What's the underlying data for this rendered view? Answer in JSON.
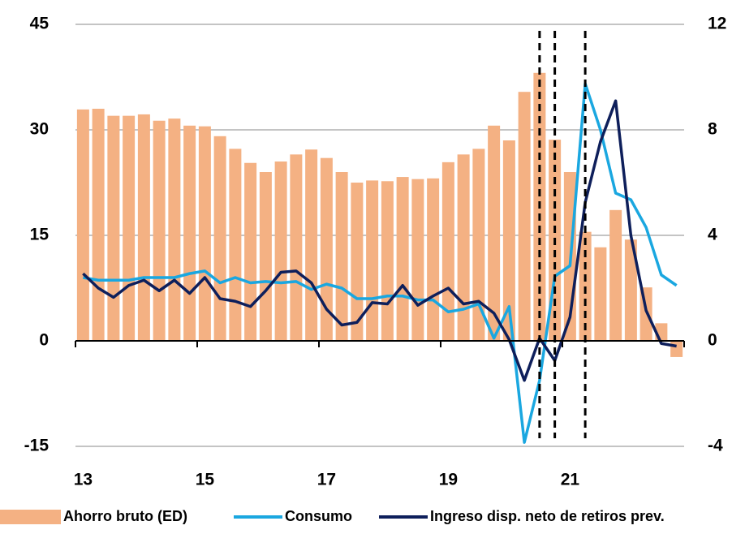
{
  "chart_data": {
    "type": "bar",
    "categories": [
      "13",
      null,
      null,
      null,
      null,
      null,
      null,
      null,
      "15",
      null,
      null,
      null,
      null,
      null,
      null,
      null,
      "17",
      null,
      null,
      null,
      null,
      null,
      null,
      null,
      "19",
      null,
      null,
      null,
      null,
      null,
      null,
      null,
      "21",
      null,
      null,
      null,
      null,
      null,
      null,
      null
    ],
    "series": [
      {
        "name": "Ahorro bruto (ED)",
        "type": "bar",
        "axis": "y",
        "color": "#f4b183",
        "values": [
          32.9,
          33.0,
          32.0,
          32.0,
          32.2,
          31.3,
          31.6,
          30.6,
          30.5,
          29.1,
          27.3,
          25.3,
          24.0,
          25.5,
          26.5,
          27.2,
          26.0,
          24.0,
          22.5,
          22.8,
          22.7,
          23.3,
          23.0,
          23.1,
          25.4,
          26.5,
          27.3,
          30.6,
          28.5,
          35.4,
          38.1,
          28.6,
          24.0,
          15.5,
          13.3,
          18.6,
          14.4,
          7.6,
          2.5,
          -2.3
        ]
      },
      {
        "name": "Consumo",
        "type": "line",
        "axis": "y2",
        "color": "#1aa7e0",
        "values": [
          2.4,
          2.3,
          2.3,
          2.3,
          2.4,
          2.4,
          2.4,
          2.55,
          2.65,
          2.2,
          2.4,
          2.2,
          2.25,
          2.2,
          2.25,
          1.95,
          2.15,
          2.0,
          1.6,
          1.6,
          1.7,
          1.7,
          1.55,
          1.55,
          1.1,
          1.2,
          1.4,
          0.1,
          1.3,
          -3.85,
          -1.5,
          2.45,
          2.85,
          9.75,
          8.0,
          5.6,
          5.35,
          4.3,
          2.5,
          2.1
        ]
      },
      {
        "name": "Ingreso disp. neto de retiros prev.",
        "type": "line",
        "axis": "y2",
        "color": "#0e1f5b",
        "values": [
          2.55,
          2.0,
          1.65,
          2.1,
          2.3,
          1.9,
          2.3,
          1.8,
          2.4,
          1.6,
          1.5,
          1.3,
          1.9,
          2.6,
          2.65,
          2.2,
          1.2,
          0.6,
          0.7,
          1.45,
          1.4,
          2.1,
          1.35,
          1.7,
          2.0,
          1.4,
          1.5,
          1.05,
          0.05,
          -1.5,
          0.1,
          -0.75,
          0.9,
          5.25,
          7.55,
          9.1,
          4.0,
          1.15,
          -0.1,
          -0.2
        ]
      }
    ],
    "vlines": [
      30,
      31,
      33
    ],
    "ylim": [
      -15,
      45
    ],
    "yticks": [
      -15,
      0,
      15,
      30,
      45
    ],
    "y2lim": [
      -4,
      12
    ],
    "y2ticks": [
      -4,
      0,
      4,
      8,
      12
    ],
    "grid": true,
    "legend": "bottom"
  }
}
